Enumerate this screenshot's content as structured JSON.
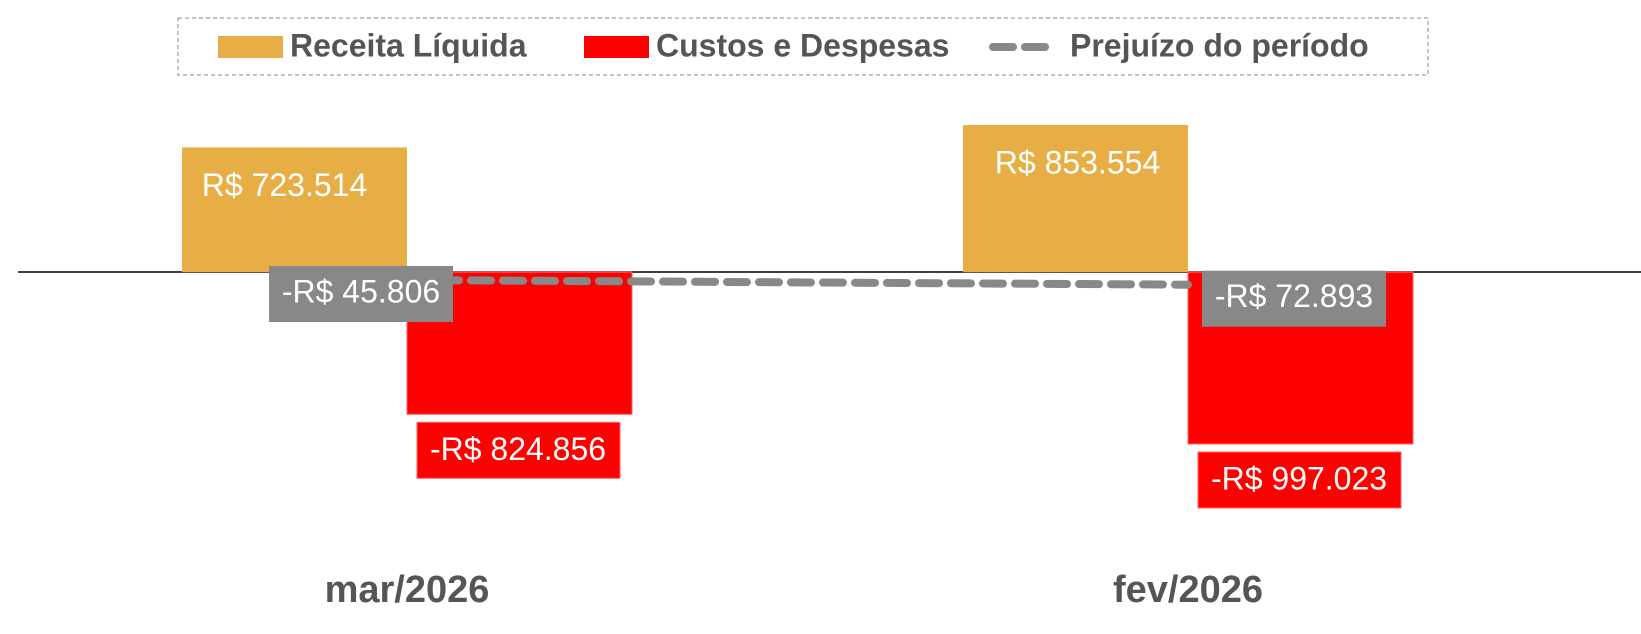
{
  "chart_data": {
    "type": "bar",
    "categories": [
      "mar/2026",
      "fev/2026"
    ],
    "series": [
      {
        "name": "Receita Líquida",
        "type": "bar",
        "color": "#E8AE46",
        "values": [
          723514,
          853554
        ],
        "value_labels": [
          "R$ 723.514",
          "R$ 853.554"
        ]
      },
      {
        "name": "Custos e Despesas",
        "type": "bar",
        "color": "#FF0000",
        "values": [
          -824856,
          -997023
        ],
        "value_labels": [
          "-R$ 824.856",
          "-R$ 997.023"
        ]
      },
      {
        "name": "Prejuízo do período",
        "type": "line",
        "color": "#888888",
        "values": [
          -45806,
          -72893
        ],
        "value_labels": [
          "-R$ 45.806",
          "-R$ 72.893"
        ]
      }
    ],
    "legend": "top"
  }
}
